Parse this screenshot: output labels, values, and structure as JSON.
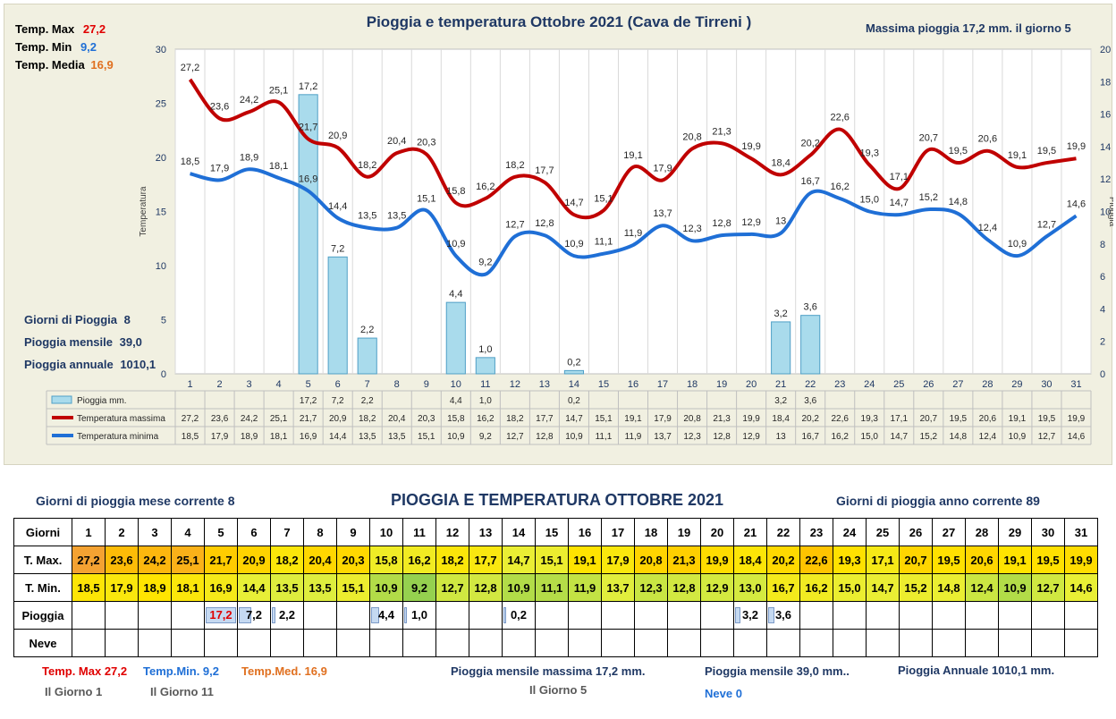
{
  "chart_data": {
    "type": "line",
    "title": "Pioggia e temperatura Ottobre 2021 (Cava de Tirreni )",
    "ylabel": "Temperatura",
    "y2label": "Pioggia",
    "ylim": [
      0,
      30
    ],
    "y2lim": [
      0,
      20
    ],
    "yticks": [
      "0",
      "5",
      "10",
      "15",
      "20",
      "25",
      "30"
    ],
    "y2ticks": [
      "0",
      "2",
      "4",
      "6",
      "8",
      "10",
      "12",
      "14",
      "16",
      "18",
      "20"
    ],
    "categories": [
      "1",
      "2",
      "3",
      "4",
      "5",
      "6",
      "7",
      "8",
      "9",
      "10",
      "11",
      "12",
      "13",
      "14",
      "15",
      "16",
      "17",
      "18",
      "19",
      "20",
      "21",
      "22",
      "23",
      "24",
      "25",
      "26",
      "27",
      "28",
      "29",
      "30",
      "31"
    ],
    "tmax_labels": [
      "27,2",
      "23,6",
      "24,2",
      "25,1",
      "21,7",
      "20,9",
      "18,2",
      "20,4",
      "20,3",
      "15,8",
      "16,2",
      "18,2",
      "17,7",
      "14,7",
      "15,1",
      "19,1",
      "17,9",
      "20,8",
      "21,3",
      "19,9",
      "18,4",
      "20,2",
      "22,6",
      "19,3",
      "17,1",
      "20,7",
      "19,5",
      "20,6",
      "19,1",
      "19,5",
      "19,9"
    ],
    "tmin_labels": [
      "18,5",
      "17,9",
      "18,9",
      "18,1",
      "16,9",
      "14,4",
      "13,5",
      "13,5",
      "15,1",
      "10,9",
      "9,2",
      "12,7",
      "12,8",
      "10,9",
      "11,1",
      "11,9",
      "13,7",
      "12,3",
      "12,8",
      "12,9",
      "13",
      "16,7",
      "16,2",
      "15,0",
      "14,7",
      "15,2",
      "14,8",
      "12,4",
      "10,9",
      "12,7",
      "14,6"
    ],
    "rain_labels": [
      "",
      "",
      "",
      "",
      "17,2",
      "7,2",
      "2,2",
      "",
      "",
      "4,4",
      "1,0",
      "",
      "",
      "0,2",
      "",
      "",
      "",
      "",
      "",
      "",
      "3,2",
      "3,6",
      "",
      "",
      "",
      "",
      "",
      "",
      "",
      "",
      ""
    ],
    "series": [
      {
        "name": "Pioggia mm.",
        "type": "bar",
        "axis": "right",
        "color": "#9fd3e6",
        "values": [
          0,
          0,
          0,
          0,
          17.2,
          7.2,
          2.2,
          0,
          0,
          4.4,
          1.0,
          0,
          0,
          0.2,
          0,
          0,
          0,
          0,
          0,
          0,
          3.2,
          3.6,
          0,
          0,
          0,
          0,
          0,
          0,
          0,
          0,
          0
        ]
      },
      {
        "name": "Temperatura massima",
        "type": "line",
        "axis": "left",
        "color": "#c00000",
        "values": [
          27.2,
          23.6,
          24.2,
          25.1,
          21.7,
          20.9,
          18.2,
          20.4,
          20.3,
          15.8,
          16.2,
          18.2,
          17.7,
          14.7,
          15.1,
          19.1,
          17.9,
          20.8,
          21.3,
          19.9,
          18.4,
          20.2,
          22.6,
          19.3,
          17.1,
          20.7,
          19.5,
          20.6,
          19.1,
          19.5,
          19.9
        ]
      },
      {
        "name": "Temperatura minima",
        "type": "line",
        "axis": "left",
        "color": "#1f6fd6",
        "values": [
          18.5,
          17.9,
          18.9,
          18.1,
          16.9,
          14.4,
          13.5,
          13.5,
          15.1,
          10.9,
          9.2,
          12.7,
          12.8,
          10.9,
          11.1,
          11.9,
          13.7,
          12.3,
          12.8,
          12.9,
          13,
          16.7,
          16.2,
          15.0,
          14.7,
          15.2,
          14.8,
          12.4,
          10.9,
          12.7,
          14.6
        ]
      }
    ],
    "legend_placement": "table below chart",
    "grid": true
  },
  "chart_panel": {
    "tmax_label": "Temp. Max",
    "tmax_value": "27,2",
    "tmin_label": "Temp. Min",
    "tmin_value": "9,2",
    "tmed_label": "Temp. Media",
    "tmed_value": "16,9",
    "max_rain_text": "Massima pioggia  17,2 mm. il giorno  5",
    "rain_days_label": "Giorni di Pioggia",
    "rain_days_value": "8",
    "monthly_label": "Pioggia mensile",
    "monthly_value": "39,0",
    "annual_label": "Pioggia annuale",
    "annual_value": "1010,1"
  },
  "table": {
    "title": "PIOGGIA E TEMPERATURA OTTOBRE 2021",
    "rain_days_month": "Giorni di pioggia mese corrente   8",
    "rain_days_year": "Giorni di pioggia anno corrente  89",
    "row_labels": [
      "Giorni",
      "T. Max.",
      "T. Min.",
      "Pioggia",
      "Neve"
    ],
    "days": [
      "1",
      "2",
      "3",
      "4",
      "5",
      "6",
      "7",
      "8",
      "9",
      "10",
      "11",
      "12",
      "13",
      "14",
      "15",
      "16",
      "17",
      "18",
      "19",
      "20",
      "21",
      "22",
      "23",
      "24",
      "25",
      "26",
      "27",
      "28",
      "29",
      "30",
      "31"
    ],
    "tmax": [
      "27,2",
      "23,6",
      "24,2",
      "25,1",
      "21,7",
      "20,9",
      "18,2",
      "20,4",
      "20,3",
      "15,8",
      "16,2",
      "18,2",
      "17,7",
      "14,7",
      "15,1",
      "19,1",
      "17,9",
      "20,8",
      "21,3",
      "19,9",
      "18,4",
      "20,2",
      "22,6",
      "19,3",
      "17,1",
      "20,7",
      "19,5",
      "20,6",
      "19,1",
      "19,5",
      "19,9"
    ],
    "tmin": [
      "18,5",
      "17,9",
      "18,9",
      "18,1",
      "16,9",
      "14,4",
      "13,5",
      "13,5",
      "15,1",
      "10,9",
      "9,2",
      "12,7",
      "12,8",
      "10,9",
      "11,1",
      "11,9",
      "13,7",
      "12,3",
      "12,8",
      "12,9",
      "13,0",
      "16,7",
      "16,2",
      "15,0",
      "14,7",
      "15,2",
      "14,8",
      "12,4",
      "10,9",
      "12,7",
      "14,6"
    ],
    "rain": [
      "",
      "",
      "",
      "",
      "17,2",
      "7,2",
      "2,2",
      "",
      "",
      "4,4",
      "1,0",
      "",
      "",
      "0,2",
      "",
      "",
      "",
      "",
      "",
      "",
      "3,2",
      "3,6",
      "",
      "",
      "",
      "",
      "",
      "",
      "",
      "",
      ""
    ],
    "rain_values": [
      0,
      0,
      0,
      0,
      17.2,
      7.2,
      2.2,
      0,
      0,
      4.4,
      1.0,
      0,
      0,
      0.2,
      0,
      0,
      0,
      0,
      0,
      0,
      3.2,
      3.6,
      0,
      0,
      0,
      0,
      0,
      0,
      0,
      0,
      0
    ]
  },
  "footer": {
    "tmax": "Temp. Max 27,2",
    "tmax_day": "Il Giorno  1",
    "tmin": "Temp.Min.  9,2",
    "tmin_day": "Il Giorno 11",
    "tmed": "Temp.Med. 16,9",
    "max_rain": "Pioggia mensile massima 17,2  mm.",
    "max_rain_day": "Il Giorno  5",
    "monthly": "Pioggia mensile  39,0   mm..",
    "snow": "Neve 0",
    "annual": "Pioggia Annuale  1010,1 mm."
  }
}
